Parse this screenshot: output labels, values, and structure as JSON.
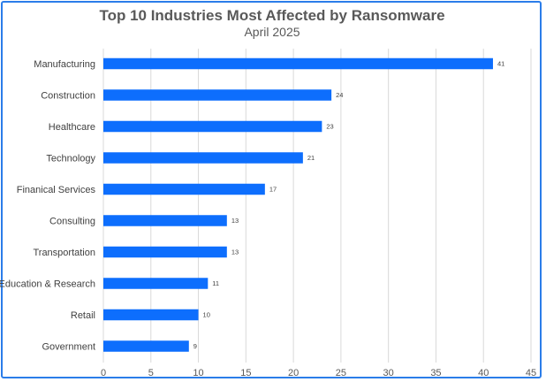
{
  "chart_data": {
    "type": "bar",
    "orientation": "horizontal",
    "title": "Top 10 Industries Most Affected by Ransomware",
    "subtitle": "April 2025",
    "categories": [
      "Manufacturing",
      "Construction",
      "Healthcare",
      "Technology",
      "Finanical Services",
      "Consulting",
      "Transportation",
      "Education & Research",
      "Retail",
      "Government"
    ],
    "values": [
      41,
      24,
      23,
      21,
      17,
      13,
      13,
      11,
      10,
      9
    ],
    "xlim": [
      0,
      45
    ],
    "xticks": [
      "0",
      "5",
      "10",
      "15",
      "20",
      "25",
      "30",
      "35",
      "40",
      "45"
    ],
    "grid": true,
    "data_labels": true,
    "bar_color": "#0d6efd",
    "border_color": "#2b7de9"
  }
}
